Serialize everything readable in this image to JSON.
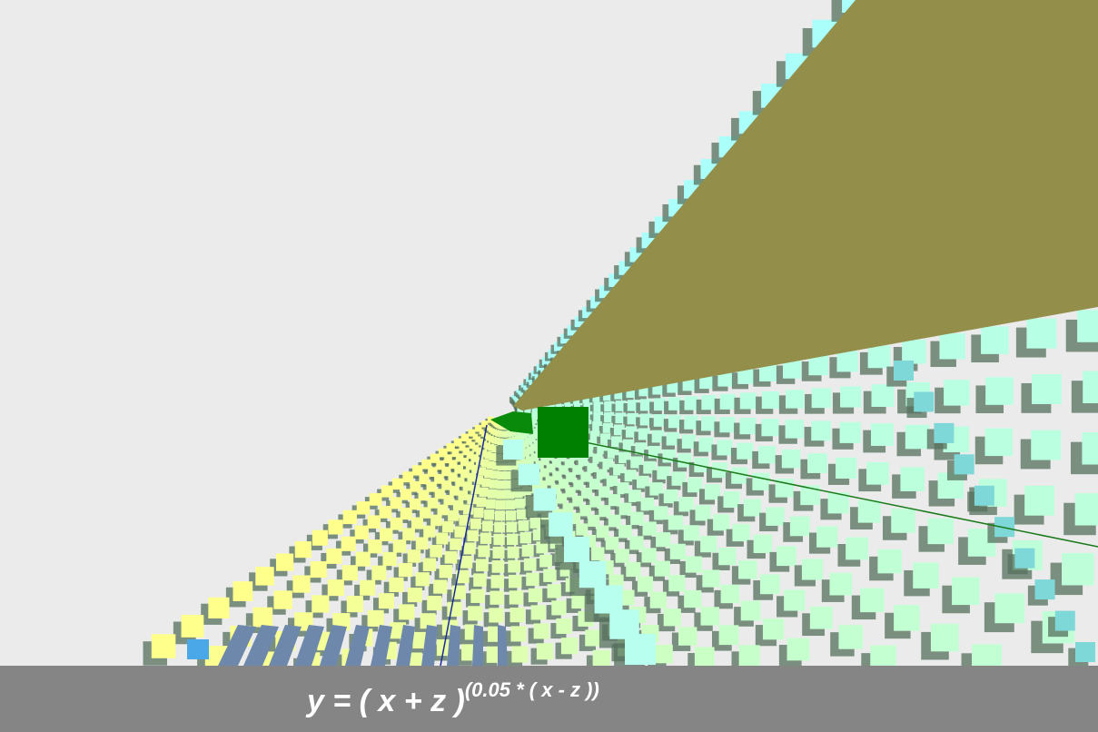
{
  "caption": {
    "base": "y = ( x + z )",
    "exponent": "(0.05 * ( x - z ))"
  }
}
